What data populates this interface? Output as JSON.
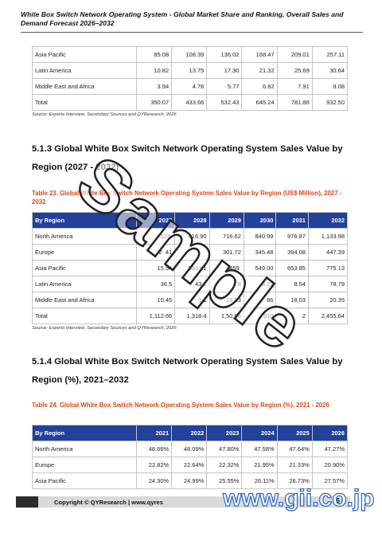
{
  "page_header": "White Box Switch Network Operating System - Global Market Share and Ranking, Overall Sales and Demand Forecast 2026–2032",
  "table_top": {
    "rows": [
      {
        "label": "Asia Pacific",
        "values": [
          "85.08",
          "108.39",
          "136.02",
          "168.47",
          "209.01",
          "257.11"
        ]
      },
      {
        "label": "Latin America",
        "values": [
          "10.82",
          "13.75",
          "17.30",
          "21.32",
          "25.69",
          "30.64"
        ]
      },
      {
        "label": "Middle East and Africa",
        "values": [
          "3.94",
          "4.78",
          "5.77",
          "6.82",
          "7.91",
          "9.08"
        ]
      },
      {
        "label": "Total",
        "values": [
          "350.07",
          "433.66",
          "532.43",
          "645.24",
          "781.86",
          "932.50"
        ]
      }
    ],
    "source": "Source: Experts Interview, Secondary Sources and QYResearch, 2026"
  },
  "section_513": {
    "title": "5.1.3  Global White Box Switch Network Operating System Sales Value by Region (2027 - 2032)",
    "caption": "Table 23.   Global White Box Switch Network Operating System Sales Value by Region (US$ Million), 2027 - 2032",
    "header": [
      "By Region",
      "2027",
      "2028",
      "2029",
      "2030",
      "2031",
      "2032"
    ],
    "rows": [
      {
        "label": "North America",
        "values": [
          "523.",
          "616.90",
          "716.62",
          "840.99",
          "976.87",
          "1,133.98"
        ]
      },
      {
        "label": "Europe",
        "values": [
          "2 .41",
          "",
          "301.72",
          "345.48",
          "394.08",
          "447.39"
        ]
      },
      {
        "label": "Asia Pacific",
        "values": [
          "15.54",
          "383.61",
          "459.",
          "549.00",
          "653.85",
          "775.13"
        ]
      },
      {
        "label": "Latin America",
        "values": [
          "36.5",
          "43.1",
          "8",
          "9.23",
          "8.54",
          "78.79"
        ]
      },
      {
        "label": "Middle East and Africa",
        "values": [
          "10.45",
          "1 1",
          "13.83",
          "86",
          "18.03",
          "20.35"
        ]
      },
      {
        "label": "Total",
        "values": [
          "1,112.66",
          "1,318.4",
          "1,50.08",
          "810",
          "2",
          "2,455.64"
        ]
      }
    ],
    "source": "Source: Experts Interview, Secondary Sources and QYResearch, 2026"
  },
  "section_514": {
    "title": "5.1.4  Global White Box Switch Network Operating System Sales Value by Region (%), 2021–2032",
    "caption": "Table 24.   Global White Box Switch Network Operating System Sales Value by Region (%), 2021 - 2026",
    "header": [
      "By Region",
      "2021",
      "2022",
      "2023",
      "2024",
      "2025",
      "2026"
    ],
    "rows": [
      {
        "label": "North America",
        "values": [
          "48.66%",
          "48.09%",
          "47.80%",
          "47.58%",
          "47.64%",
          "47.27%"
        ]
      },
      {
        "label": "Europe",
        "values": [
          "22.82%",
          "22.64%",
          "22.32%",
          "21.95%",
          "21.33%",
          "20.90%"
        ]
      },
      {
        "label": "Asia Pacific",
        "values": [
          "24.30%",
          "24.99%",
          "25.55%",
          "26.11%",
          "26.73%",
          "27.57%"
        ]
      }
    ]
  },
  "footer": {
    "text": "Copyright © QYResearch | www.qyres",
    "page_number": "26"
  },
  "watermark": "Sample",
  "brand_logo": "www.gii.co.jp"
}
